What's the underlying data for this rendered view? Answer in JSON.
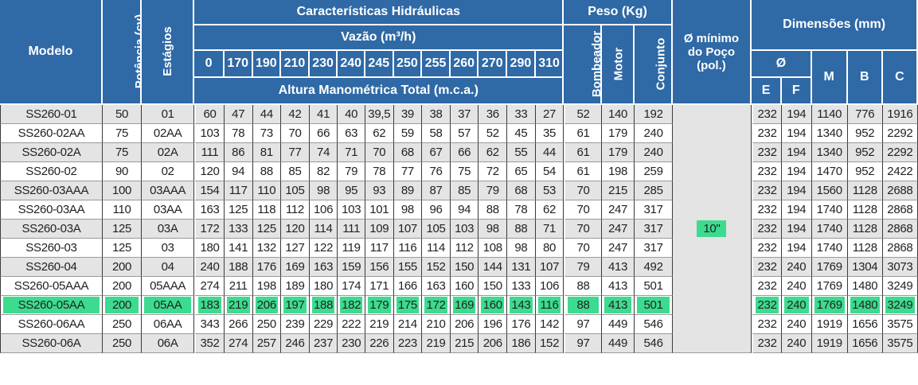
{
  "colors": {
    "header": "#2f69a6",
    "shade": "#e4e4e5",
    "highlight": "#3ddb8f"
  },
  "headers": {
    "modelo": "Modelo",
    "potencia": "Potência (cv)",
    "estagios": "Estágios",
    "caracteristicas": "Características Hidráulicas",
    "vazao": "Vazão (m³/h)",
    "altura": "Altura Manométrica Total (m.c.a.)",
    "peso": "Peso (Kg)",
    "bombeador": "Bombeador",
    "motor": "Motor",
    "conjunto": "Conjunto",
    "poco_line1": "Ø mínimo",
    "poco_line2": "do Poço",
    "poco_line3": "(pol.)",
    "dimensoes": "Dimensões (mm)",
    "diam": "Ø",
    "e": "E",
    "f": "F",
    "m": "M",
    "b": "B",
    "c": "C"
  },
  "flows": [
    "0",
    "170",
    "190",
    "210",
    "230",
    "240",
    "245",
    "250",
    "255",
    "260",
    "270",
    "290",
    "310"
  ],
  "poco_value": "10\"",
  "highlight_row": 10,
  "rows": [
    {
      "modelo": "SS260-01",
      "potencia": "50",
      "estagios": "01",
      "alturas": [
        "60",
        "47",
        "44",
        "42",
        "41",
        "40",
        "39,5",
        "39",
        "38",
        "37",
        "36",
        "33",
        "27"
      ],
      "bombeador": "52",
      "motor": "140",
      "conjunto": "192",
      "e": "232",
      "f": "194",
      "m": "1140",
      "b": "776",
      "c": "1916"
    },
    {
      "modelo": "SS260-02AA",
      "potencia": "75",
      "estagios": "02AA",
      "alturas": [
        "103",
        "78",
        "73",
        "70",
        "66",
        "63",
        "62",
        "59",
        "58",
        "57",
        "52",
        "45",
        "35"
      ],
      "bombeador": "61",
      "motor": "179",
      "conjunto": "240",
      "e": "232",
      "f": "194",
      "m": "1340",
      "b": "952",
      "c": "2292"
    },
    {
      "modelo": "SS260-02A",
      "potencia": "75",
      "estagios": "02A",
      "alturas": [
        "111",
        "86",
        "81",
        "77",
        "74",
        "71",
        "70",
        "68",
        "67",
        "66",
        "62",
        "55",
        "44"
      ],
      "bombeador": "61",
      "motor": "179",
      "conjunto": "240",
      "e": "232",
      "f": "194",
      "m": "1340",
      "b": "952",
      "c": "2292"
    },
    {
      "modelo": "SS260-02",
      "potencia": "90",
      "estagios": "02",
      "alturas": [
        "120",
        "94",
        "88",
        "85",
        "82",
        "79",
        "78",
        "77",
        "76",
        "75",
        "72",
        "65",
        "54"
      ],
      "bombeador": "61",
      "motor": "198",
      "conjunto": "259",
      "e": "232",
      "f": "194",
      "m": "1470",
      "b": "952",
      "c": "2422"
    },
    {
      "modelo": "SS260-03AAA",
      "potencia": "100",
      "estagios": "03AAA",
      "alturas": [
        "154",
        "117",
        "110",
        "105",
        "98",
        "95",
        "93",
        "89",
        "87",
        "85",
        "79",
        "68",
        "53"
      ],
      "bombeador": "70",
      "motor": "215",
      "conjunto": "285",
      "e": "232",
      "f": "194",
      "m": "1560",
      "b": "1128",
      "c": "2688"
    },
    {
      "modelo": "SS260-03AA",
      "potencia": "110",
      "estagios": "03AA",
      "alturas": [
        "163",
        "125",
        "118",
        "112",
        "106",
        "103",
        "101",
        "98",
        "96",
        "94",
        "88",
        "78",
        "62"
      ],
      "bombeador": "70",
      "motor": "247",
      "conjunto": "317",
      "e": "232",
      "f": "194",
      "m": "1740",
      "b": "1128",
      "c": "2868"
    },
    {
      "modelo": "SS260-03A",
      "potencia": "125",
      "estagios": "03A",
      "alturas": [
        "172",
        "133",
        "125",
        "120",
        "114",
        "111",
        "109",
        "107",
        "105",
        "103",
        "98",
        "88",
        "71"
      ],
      "bombeador": "70",
      "motor": "247",
      "conjunto": "317",
      "e": "232",
      "f": "194",
      "m": "1740",
      "b": "1128",
      "c": "2868"
    },
    {
      "modelo": "SS260-03",
      "potencia": "125",
      "estagios": "03",
      "alturas": [
        "180",
        "141",
        "132",
        "127",
        "122",
        "119",
        "117",
        "116",
        "114",
        "112",
        "108",
        "98",
        "80"
      ],
      "bombeador": "70",
      "motor": "247",
      "conjunto": "317",
      "e": "232",
      "f": "194",
      "m": "1740",
      "b": "1128",
      "c": "2868"
    },
    {
      "modelo": "SS260-04",
      "potencia": "200",
      "estagios": "04",
      "alturas": [
        "240",
        "188",
        "176",
        "169",
        "163",
        "159",
        "156",
        "155",
        "152",
        "150",
        "144",
        "131",
        "107"
      ],
      "bombeador": "79",
      "motor": "413",
      "conjunto": "492",
      "e": "232",
      "f": "240",
      "m": "1769",
      "b": "1304",
      "c": "3073"
    },
    {
      "modelo": "SS260-05AAA",
      "potencia": "200",
      "estagios": "05AAA",
      "alturas": [
        "274",
        "211",
        "198",
        "189",
        "180",
        "174",
        "171",
        "166",
        "163",
        "160",
        "150",
        "133",
        "106"
      ],
      "bombeador": "88",
      "motor": "413",
      "conjunto": "501",
      "e": "232",
      "f": "240",
      "m": "1769",
      "b": "1480",
      "c": "3249"
    },
    {
      "modelo": "SS260-05AA",
      "potencia": "200",
      "estagios": "05AA",
      "alturas": [
        "183",
        "219",
        "206",
        "197",
        "188",
        "182",
        "179",
        "175",
        "172",
        "169",
        "160",
        "143",
        "116"
      ],
      "bombeador": "88",
      "motor": "413",
      "conjunto": "501",
      "e": "232",
      "f": "240",
      "m": "1769",
      "b": "1480",
      "c": "3249"
    },
    {
      "modelo": "SS260-06AA",
      "potencia": "250",
      "estagios": "06AA",
      "alturas": [
        "343",
        "266",
        "250",
        "239",
        "229",
        "222",
        "219",
        "214",
        "210",
        "206",
        "196",
        "176",
        "142"
      ],
      "bombeador": "97",
      "motor": "449",
      "conjunto": "546",
      "e": "232",
      "f": "240",
      "m": "1919",
      "b": "1656",
      "c": "3575"
    },
    {
      "modelo": "SS260-06A",
      "potencia": "250",
      "estagios": "06A",
      "alturas": [
        "352",
        "274",
        "257",
        "246",
        "237",
        "230",
        "226",
        "223",
        "219",
        "215",
        "206",
        "186",
        "152"
      ],
      "bombeador": "97",
      "motor": "449",
      "conjunto": "546",
      "e": "232",
      "f": "240",
      "m": "1919",
      "b": "1656",
      "c": "3575"
    }
  ]
}
